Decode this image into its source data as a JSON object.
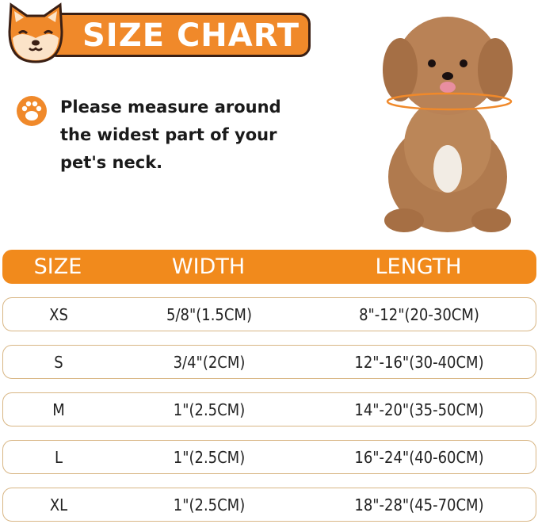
{
  "header": {
    "title": "SIZE CHART",
    "accent_color": "#f18a1c"
  },
  "note": {
    "icon": "paw-icon",
    "text": "Please measure around the widest part of your pet's neck."
  },
  "table": {
    "columns": [
      "SIZE",
      "WIDTH",
      "LENGTH"
    ],
    "rows": [
      [
        "XS",
        "5/8\"(1.5CM)",
        "8\"-12\"(20-30CM)"
      ],
      [
        "S",
        "3/4\"(2CM)",
        "12\"-16\"(30-40CM)"
      ],
      [
        "M",
        "1\"(2.5CM)",
        "14\"-20\"(35-50CM)"
      ],
      [
        "L",
        "1\"(2.5CM)",
        "16\"-24\"(40-60CM)"
      ],
      [
        "XL",
        "1\"(2.5CM)",
        "18\"-28\"(45-70CM)"
      ]
    ]
  }
}
